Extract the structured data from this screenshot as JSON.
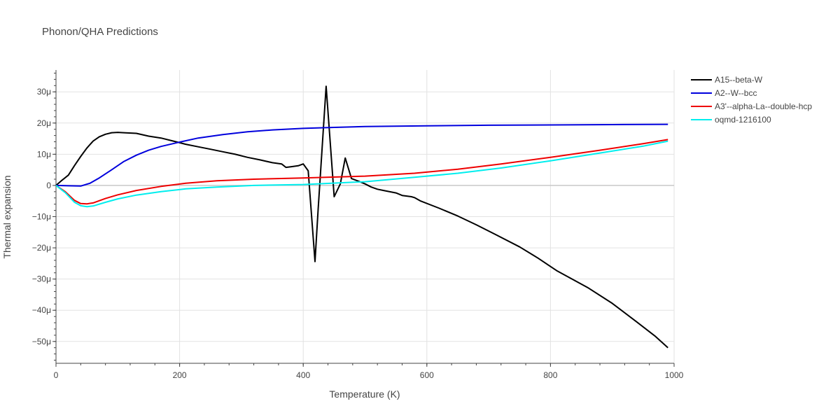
{
  "chart_data": {
    "type": "line",
    "title": "Phonon/QHA Predictions",
    "xlabel": "Temperature (K)",
    "ylabel": "Thermal expansion",
    "xlim": [
      0,
      1000
    ],
    "ylim": [
      -57,
      37
    ],
    "y_unit_suffix": "μ",
    "x_ticks": [
      0,
      200,
      400,
      600,
      800,
      1000
    ],
    "x_tick_labels": [
      "0",
      "200",
      "400",
      "600",
      "800",
      "1000"
    ],
    "y_ticks": [
      -50,
      -40,
      -30,
      -20,
      -10,
      0,
      10,
      20,
      30
    ],
    "y_tick_labels": [
      "−50μ",
      "−40μ",
      "−30μ",
      "−20μ",
      "−10μ",
      "0",
      "10μ",
      "20μ",
      "30μ"
    ],
    "grid": true,
    "legend_position": "top-right, outside plot",
    "series": [
      {
        "name": "A15--beta-W",
        "color": "#000000",
        "x": [
          0,
          10,
          20,
          30,
          40,
          50,
          60,
          70,
          80,
          90,
          100,
          110,
          130,
          150,
          170,
          190,
          210,
          230,
          250,
          270,
          290,
          310,
          330,
          350,
          365,
          372,
          380,
          392,
          400,
          408,
          419,
          424,
          437,
          450,
          460,
          468,
          478,
          490,
          500,
          510,
          520,
          530,
          550,
          560,
          575,
          580,
          590,
          620,
          650,
          680,
          710,
          750,
          780,
          810,
          860,
          900,
          940,
          970,
          990
        ],
        "y": [
          0,
          1.7,
          3.3,
          6.4,
          9.3,
          12.0,
          14.2,
          15.6,
          16.4,
          16.9,
          17.0,
          16.9,
          16.7,
          15.8,
          15.2,
          14.2,
          13.2,
          12.4,
          11.6,
          10.8,
          10.0,
          9.0,
          8.2,
          7.3,
          6.9,
          5.8,
          6.0,
          6.3,
          6.9,
          4.7,
          -24.4,
          -8.0,
          31.8,
          -3.6,
          0.5,
          8.8,
          2.2,
          1.3,
          0.5,
          -0.5,
          -1.2,
          -1.6,
          -2.4,
          -3.2,
          -3.6,
          -3.9,
          -5.0,
          -7.3,
          -9.8,
          -12.6,
          -15.6,
          -19.7,
          -23.3,
          -27.3,
          -32.7,
          -37.8,
          -43.8,
          -48.4,
          -52.0
        ]
      },
      {
        "name": "A2--W--bcc",
        "color": "#0000dd",
        "x": [
          0,
          20,
          40,
          55,
          70,
          90,
          110,
          130,
          150,
          170,
          200,
          230,
          270,
          310,
          350,
          400,
          450,
          500,
          550,
          600,
          700,
          800,
          900,
          990
        ],
        "y": [
          0,
          -0.1,
          -0.2,
          0.7,
          2.4,
          5.0,
          7.7,
          9.7,
          11.3,
          12.5,
          13.9,
          15.2,
          16.3,
          17.2,
          17.8,
          18.3,
          18.6,
          18.9,
          19.0,
          19.1,
          19.3,
          19.4,
          19.5,
          19.6
        ]
      },
      {
        "name": "A3'--alpha-La--double-hcp",
        "color": "#ee0000",
        "x": [
          0,
          15,
          30,
          40,
          50,
          60,
          80,
          100,
          130,
          170,
          210,
          260,
          320,
          400,
          500,
          580,
          650,
          720,
          800,
          880,
          950,
          990
        ],
        "y": [
          0,
          -2.0,
          -4.8,
          -5.8,
          -5.9,
          -5.6,
          -4.2,
          -3.0,
          -1.6,
          -0.3,
          0.7,
          1.5,
          2.0,
          2.4,
          3.0,
          3.9,
          5.2,
          6.9,
          9.0,
          11.3,
          13.4,
          14.7
        ]
      },
      {
        "name": "oqmd-1216100",
        "color": "#00eeee",
        "x": [
          0,
          15,
          30,
          40,
          50,
          60,
          80,
          100,
          130,
          170,
          210,
          260,
          320,
          400,
          500,
          580,
          650,
          720,
          800,
          880,
          950,
          990
        ],
        "y": [
          0,
          -2.3,
          -5.4,
          -6.5,
          -6.8,
          -6.6,
          -5.4,
          -4.3,
          -3.1,
          -2.0,
          -1.1,
          -0.5,
          0,
          0.3,
          1.2,
          2.6,
          3.9,
          5.6,
          7.9,
          10.4,
          12.6,
          14.2
        ]
      }
    ]
  }
}
